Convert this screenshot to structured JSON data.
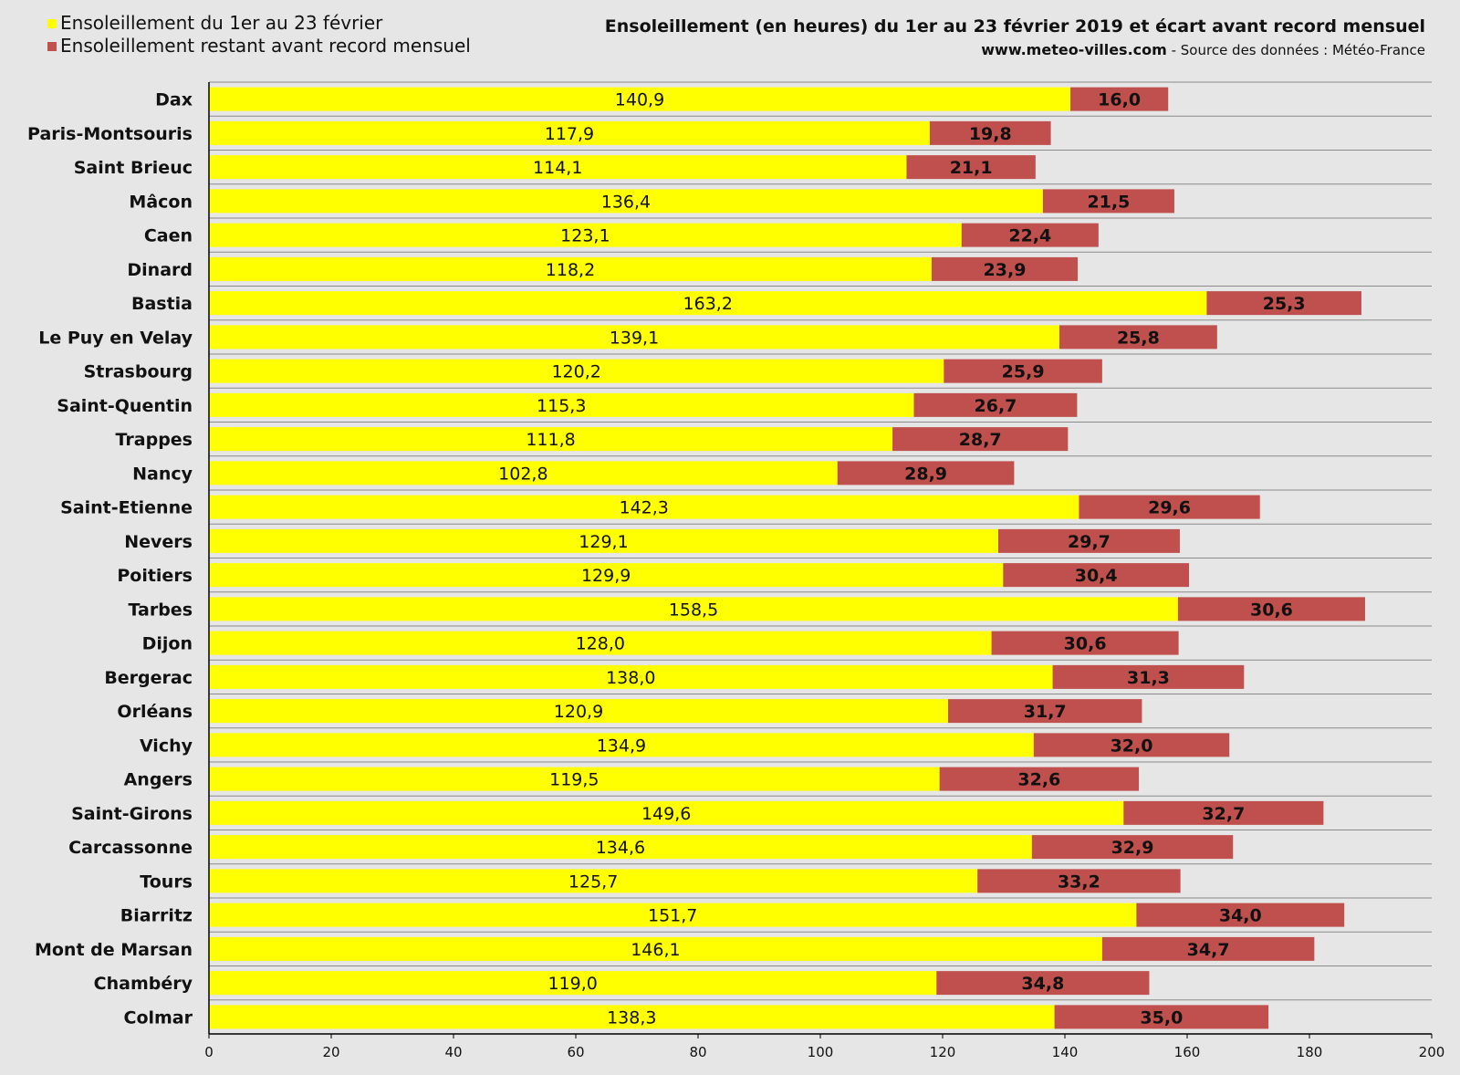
{
  "header": {
    "title": "Ensoleillement (en heures) du 1er au 23 février 2019 et écart avant record mensuel",
    "site": "www.meteo-villes.com",
    "source": "- Source des données : Météo-France"
  },
  "chart_data": {
    "type": "bar",
    "orientation": "horizontal",
    "stacked": true,
    "title": "Ensoleillement (en heures) du 1er au 23 février 2019 et écart avant record mensuel",
    "xlabel": "",
    "ylabel": "",
    "xlim": [
      0,
      200
    ],
    "xticks": [
      0,
      20,
      40,
      60,
      80,
      100,
      120,
      140,
      160,
      180,
      200
    ],
    "grid": true,
    "legend_position": "top-left",
    "categories": [
      "Dax",
      "Paris-Montsouris",
      "Saint Brieuc",
      "Mâcon",
      "Caen",
      "Dinard",
      "Bastia",
      "Le Puy en Velay",
      "Strasbourg",
      "Saint-Quentin",
      "Trappes",
      "Nancy",
      "Saint-Etienne",
      "Nevers",
      "Poitiers",
      "Tarbes",
      "Dijon",
      "Bergerac",
      "Orléans",
      "Vichy",
      "Angers",
      "Saint-Girons",
      "Carcassonne",
      "Tours",
      "Biarritz",
      "Mont de Marsan",
      "Chambéry",
      "Colmar"
    ],
    "series": [
      {
        "name": "Ensoleillement du 1er au 23 février",
        "color": "#ffff00",
        "values": [
          140.9,
          117.9,
          114.1,
          136.4,
          123.1,
          118.2,
          163.2,
          139.1,
          120.2,
          115.3,
          111.8,
          102.8,
          142.3,
          129.1,
          129.9,
          158.5,
          128.0,
          138.0,
          120.9,
          134.9,
          119.5,
          149.6,
          134.6,
          125.7,
          151.7,
          146.1,
          119.0,
          138.3
        ],
        "labels": [
          "140,9",
          "117,9",
          "114,1",
          "136,4",
          "123,1",
          "118,2",
          "163,2",
          "139,1",
          "120,2",
          "115,3",
          "111,8",
          "102,8",
          "142,3",
          "129,1",
          "129,9",
          "158,5",
          "128,0",
          "138,0",
          "120,9",
          "134,9",
          "119,5",
          "149,6",
          "134,6",
          "125,7",
          "151,7",
          "146,1",
          "119,0",
          "138,3"
        ]
      },
      {
        "name": "Ensoleillement restant avant record mensuel",
        "color": "#c0504d",
        "values": [
          16.0,
          19.8,
          21.1,
          21.5,
          22.4,
          23.9,
          25.3,
          25.8,
          25.9,
          26.7,
          28.7,
          28.9,
          29.6,
          29.7,
          30.4,
          30.6,
          30.6,
          31.3,
          31.7,
          32.0,
          32.6,
          32.7,
          32.9,
          33.2,
          34.0,
          34.7,
          34.8,
          35.0
        ],
        "labels": [
          "16,0",
          "19,8",
          "21,1",
          "21,5",
          "22,4",
          "23,9",
          "25,3",
          "25,8",
          "25,9",
          "26,7",
          "28,7",
          "28,9",
          "29,6",
          "29,7",
          "30,4",
          "30,6",
          "30,6",
          "31,3",
          "31,7",
          "32,0",
          "32,6",
          "32,7",
          "32,9",
          "33,2",
          "34,0",
          "34,7",
          "34,8",
          "35,0"
        ]
      }
    ]
  }
}
